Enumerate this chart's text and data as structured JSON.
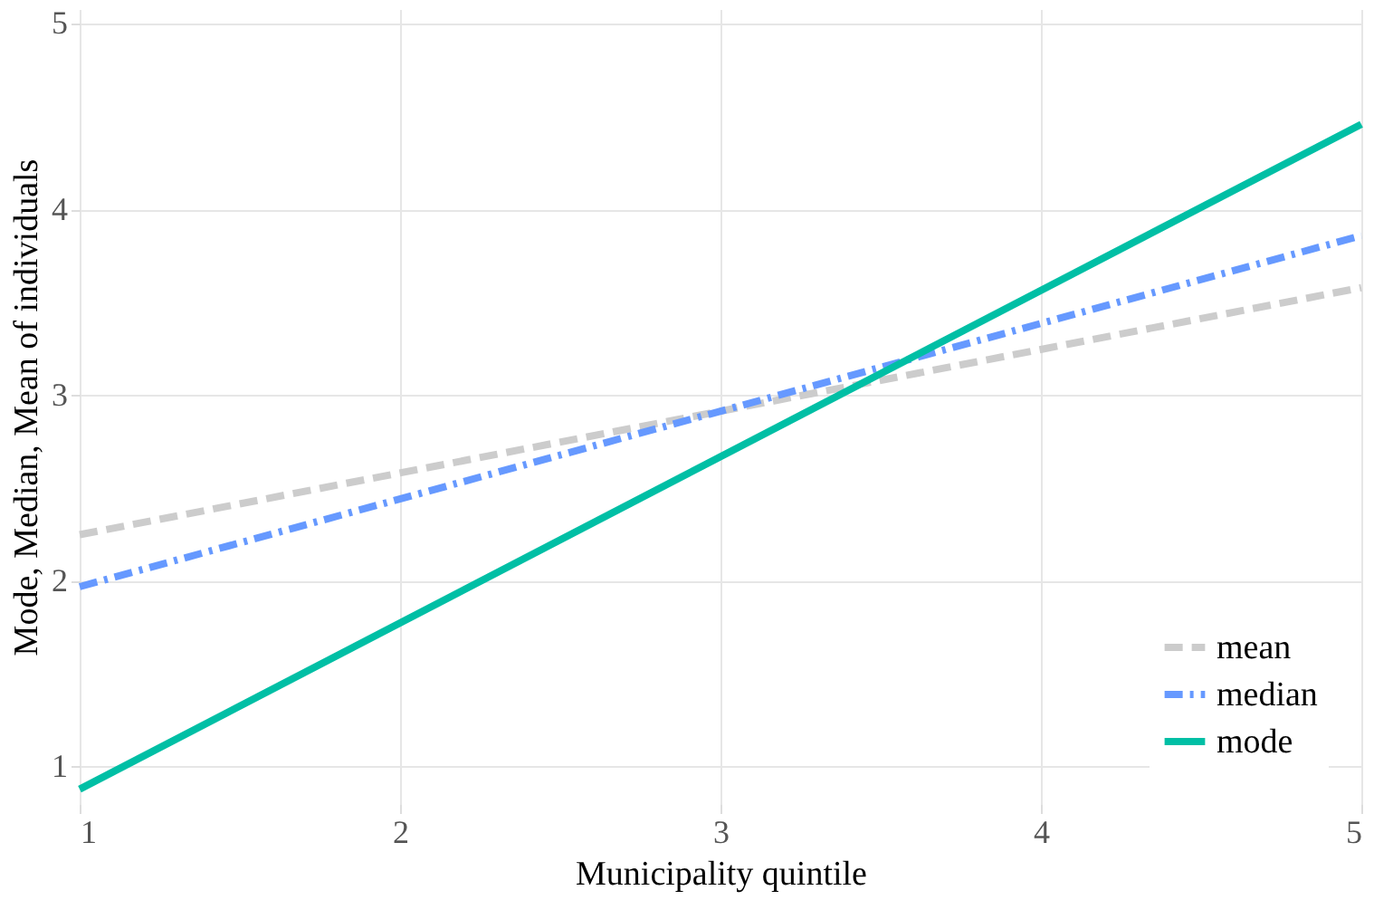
{
  "chart_data": {
    "type": "line",
    "xlabel": "Municipality quintile",
    "ylabel": "Mode, Median, Mean of individuals",
    "x": [
      1,
      5
    ],
    "series": [
      {
        "name": "mean",
        "color": "#cccccc",
        "values": [
          2.25,
          3.58
        ],
        "line_style": "dashed"
      },
      {
        "name": "median",
        "color": "#6699ff",
        "values": [
          1.97,
          3.86
        ],
        "line_style": "dashdot"
      },
      {
        "name": "mode",
        "color": "#00bfa5",
        "values": [
          0.88,
          4.46
        ],
        "line_style": "solid"
      }
    ],
    "xlim": [
      1,
      5
    ],
    "xticks": [
      1,
      2,
      3,
      4,
      5
    ],
    "ylim": [
      0.8,
      5.08
    ],
    "yticks": [
      1,
      2,
      3,
      4,
      5
    ],
    "grid": true,
    "legend": "bottom right",
    "marker": "none"
  }
}
